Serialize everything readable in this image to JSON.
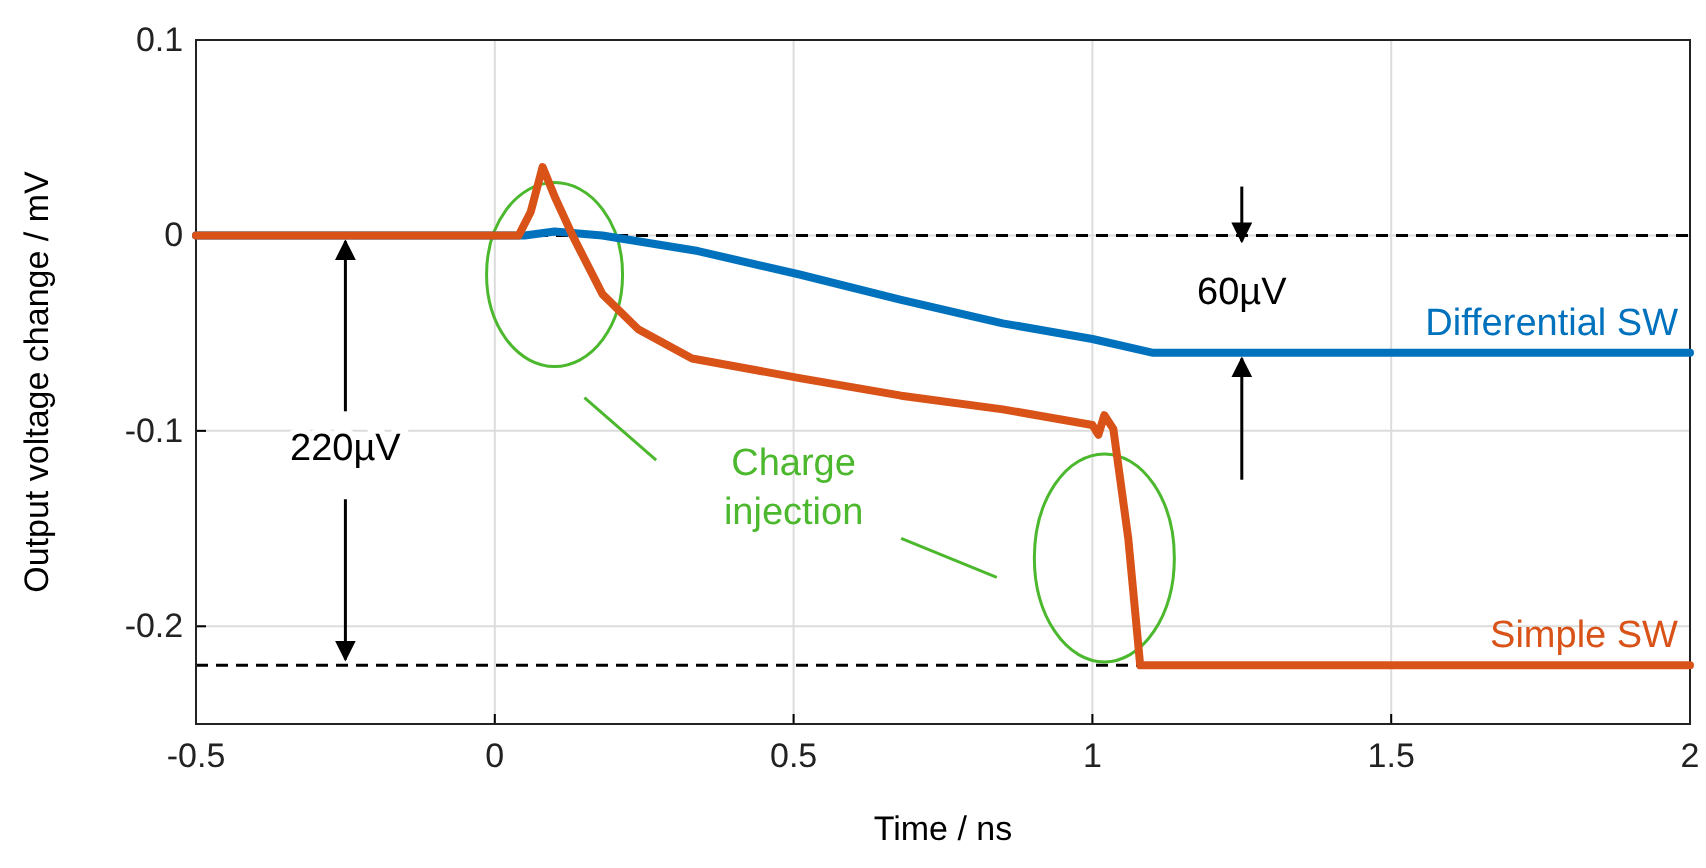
{
  "chart_data": {
    "type": "line",
    "xlabel": "Time / ns",
    "ylabel": "Output voltage change / mV",
    "xlim": [
      -0.5,
      2
    ],
    "xticks": [
      -0.5,
      0,
      0.5,
      1,
      1.5,
      2
    ],
    "ylim": [
      -0.25,
      0.1
    ],
    "yticks": [
      -0.2,
      -0.1,
      0,
      0.1
    ],
    "grid": true,
    "series": [
      {
        "name": "Differential SW",
        "color": "#0072bd",
        "x": [
          -0.5,
          0.05,
          0.1,
          0.18,
          0.34,
          0.51,
          0.68,
          0.85,
          1.0,
          1.1,
          2
        ],
        "values": [
          0,
          0,
          0.002,
          0,
          -0.008,
          -0.02,
          -0.033,
          -0.045,
          -0.053,
          -0.06,
          -0.06
        ]
      },
      {
        "name": "Simple SW",
        "color": "#d95319",
        "x": [
          -0.5,
          0.04,
          0.06,
          0.08,
          0.1,
          0.13,
          0.18,
          0.24,
          0.33,
          0.51,
          0.68,
          0.85,
          1.0,
          1.01,
          1.02,
          1.035,
          1.06,
          1.08,
          2
        ],
        "values": [
          0,
          0,
          0.012,
          0.035,
          0.02,
          0,
          -0.03,
          -0.048,
          -0.063,
          -0.073,
          -0.082,
          -0.089,
          -0.097,
          -0.102,
          -0.092,
          -0.099,
          -0.155,
          -0.22,
          -0.22
        ]
      }
    ],
    "ref_lines": [
      {
        "axis": "y",
        "value": 0,
        "line_style": "dashed",
        "color": "#000000"
      },
      {
        "axis": "y",
        "value": -0.22,
        "line_style": "dashed",
        "color": "#000000"
      }
    ],
    "annotations": [
      "60µV",
      {
        "text": "220µV",
        "x": -0.25,
        "y": -0.22
      },
      "Charge injection"
    ]
  }
}
